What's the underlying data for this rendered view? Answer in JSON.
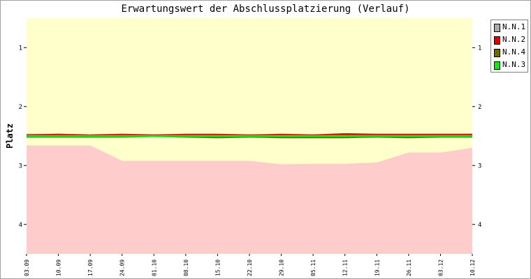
{
  "chart_data": {
    "type": "line",
    "title": "Erwartungswert der Abschlussplatzierung (Verlauf)",
    "xlabel": "",
    "ylabel": "Platz",
    "categories": [
      "03.09",
      "10.09",
      "17.09",
      "24.09",
      "01.10",
      "08.10",
      "15.10",
      "22.10",
      "29.10",
      "05.11",
      "12.11",
      "19.11",
      "26.11",
      "03.12",
      "10.12"
    ],
    "ylim": [
      4.5,
      0.5
    ],
    "yticks": [
      1,
      2,
      3,
      4
    ],
    "inverted_y": true,
    "grid": false,
    "legend_position": "right",
    "background": {
      "upper_band_color": "#ffffcc",
      "lower_band_color": "#ffcccc",
      "boundary": [
        2.66,
        2.66,
        2.66,
        2.92,
        2.92,
        2.92,
        2.92,
        2.92,
        2.98,
        2.97,
        2.97,
        2.95,
        2.78,
        2.78,
        2.7
      ]
    },
    "series": [
      {
        "name": "N.N.1",
        "color": "#aaaaaa",
        "values": [
          2.48,
          2.48,
          2.49,
          2.49,
          2.49,
          2.49,
          2.49,
          2.49,
          2.49,
          2.49,
          2.49,
          2.49,
          2.49,
          2.49,
          2.48
        ]
      },
      {
        "name": "N.N.2",
        "color": "#dd0000",
        "values": [
          2.49,
          2.48,
          2.49,
          2.48,
          2.49,
          2.48,
          2.48,
          2.49,
          2.48,
          2.49,
          2.47,
          2.48,
          2.48,
          2.48,
          2.48
        ]
      },
      {
        "name": "N.N.4",
        "color": "#6b6b00",
        "values": [
          2.51,
          2.51,
          2.51,
          2.51,
          2.5,
          2.51,
          2.52,
          2.51,
          2.52,
          2.52,
          2.52,
          2.51,
          2.52,
          2.51,
          2.51
        ]
      },
      {
        "name": "N.N.3",
        "color": "#22dd22",
        "values": [
          2.5,
          2.5,
          2.5,
          2.5,
          2.5,
          2.5,
          2.5,
          2.5,
          2.5,
          2.5,
          2.5,
          2.5,
          2.5,
          2.5,
          2.5
        ]
      }
    ]
  }
}
